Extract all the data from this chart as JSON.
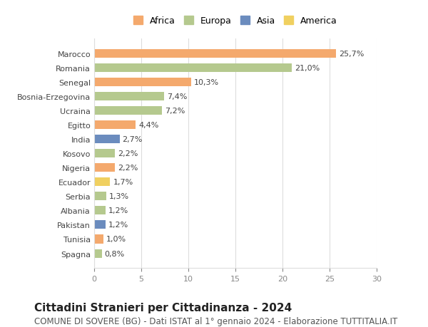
{
  "countries": [
    "Marocco",
    "Romania",
    "Senegal",
    "Bosnia-Erzegovina",
    "Ucraina",
    "Egitto",
    "India",
    "Kosovo",
    "Nigeria",
    "Ecuador",
    "Serbia",
    "Albania",
    "Pakistan",
    "Tunisia",
    "Spagna"
  ],
  "values": [
    25.7,
    21.0,
    10.3,
    7.4,
    7.2,
    4.4,
    2.7,
    2.2,
    2.2,
    1.7,
    1.3,
    1.2,
    1.2,
    1.0,
    0.8
  ],
  "labels": [
    "25,7%",
    "21,0%",
    "10,3%",
    "7,4%",
    "7,2%",
    "4,4%",
    "2,7%",
    "2,2%",
    "2,2%",
    "1,7%",
    "1,3%",
    "1,2%",
    "1,2%",
    "1,0%",
    "0,8%"
  ],
  "continents": [
    "Africa",
    "Europa",
    "Africa",
    "Europa",
    "Europa",
    "Africa",
    "Asia",
    "Europa",
    "Africa",
    "America",
    "Europa",
    "Europa",
    "Asia",
    "Africa",
    "Europa"
  ],
  "colors": {
    "Africa": "#F4A96D",
    "Europa": "#B5C98E",
    "Asia": "#6B8CBE",
    "America": "#F0D060"
  },
  "legend_order": [
    "Africa",
    "Europa",
    "Asia",
    "America"
  ],
  "title": "Cittadini Stranieri per Cittadinanza - 2024",
  "subtitle": "COMUNE DI SOVERE (BG) - Dati ISTAT al 1° gennaio 2024 - Elaborazione TUTTITALIA.IT",
  "xlim": [
    0,
    30
  ],
  "xticks": [
    0,
    5,
    10,
    15,
    20,
    25,
    30
  ],
  "background_color": "#ffffff",
  "grid_color": "#dddddd",
  "title_fontsize": 11,
  "subtitle_fontsize": 8.5,
  "label_fontsize": 8,
  "tick_fontsize": 8,
  "legend_fontsize": 9
}
